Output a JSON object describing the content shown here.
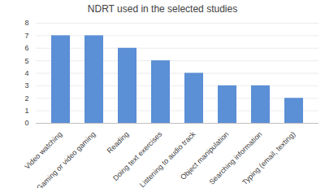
{
  "chart_data": {
    "type": "bar",
    "title": "NDRT used in the selected studies",
    "categories": [
      "Video watching",
      "Gaming or video gaming",
      "Reading",
      "Doing text exercises",
      "Listening to audio track",
      "Object manipulation",
      "Searching information",
      "Typing (email, texting)"
    ],
    "values": [
      7,
      7,
      6,
      5,
      4,
      3,
      3,
      2
    ],
    "color": "#5b8fd6",
    "ylim": [
      0,
      8
    ],
    "yticks": [
      0,
      1,
      2,
      3,
      4,
      5,
      6,
      7,
      8
    ],
    "grid": true
  }
}
